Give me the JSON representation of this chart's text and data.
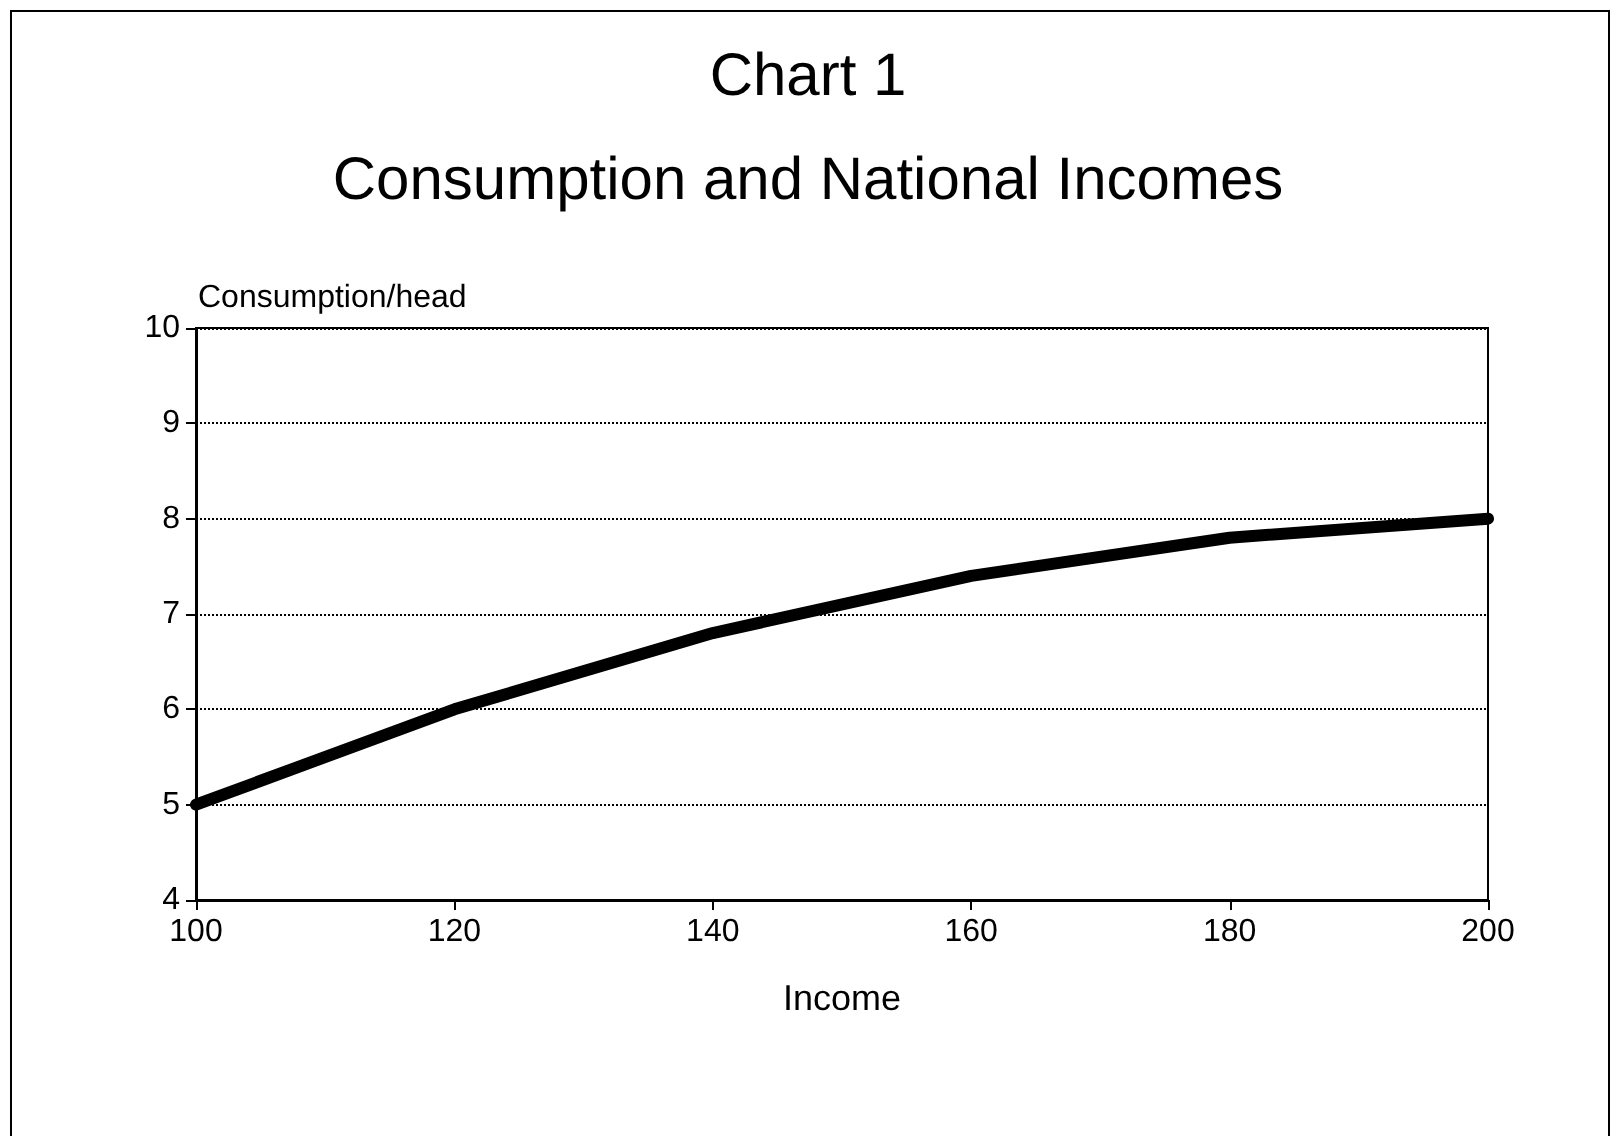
{
  "chart_data": {
    "type": "line",
    "title": "Chart 1",
    "subtitle": "Consumption and National Incomes",
    "xlabel": "Income",
    "ylabel": "Consumption/head",
    "x": [
      100,
      120,
      140,
      160,
      180,
      200
    ],
    "series": [
      {
        "color": "#000000",
        "values": [
          5,
          6,
          6.8,
          7.4,
          7.8,
          8
        ]
      }
    ],
    "xlim": [
      100,
      200
    ],
    "xticks": [
      100,
      120,
      140,
      160,
      180,
      200
    ],
    "ylim": [
      4,
      10
    ],
    "yticks": [
      4,
      5,
      6,
      7,
      8,
      9,
      10
    ],
    "grid": "y",
    "marker": "none",
    "line_style": "solid"
  }
}
